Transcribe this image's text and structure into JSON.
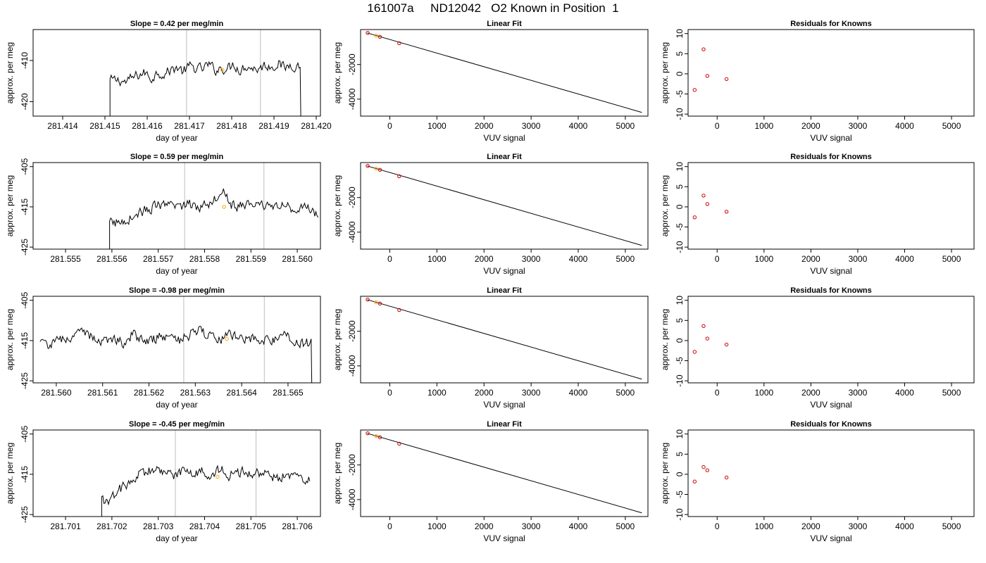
{
  "suptitle": "161007a     ND12042   O2 Known in Position  1",
  "colors": {
    "trace": "#000000",
    "grid_vline": "#c8c8c8",
    "known_point": "#ffa500",
    "residual": "#cc0000",
    "axis": "#000000"
  },
  "chart_data": [
    {
      "type": "line",
      "title": "Slope =  0.42  per meg/min",
      "xlabel": "day of year",
      "ylabel": "approx. per meg",
      "xlim": [
        281.4133,
        281.4201
      ],
      "ylim": [
        -423.5,
        -402.5
      ],
      "xticks": [
        281.414,
        281.415,
        281.416,
        281.417,
        281.418,
        281.419,
        281.42
      ],
      "xtick_labels": [
        "281.414",
        "281.415",
        "281.416",
        "281.417",
        "281.418",
        "281.419",
        "281.420"
      ],
      "yticks": [
        -410,
        -420
      ],
      "ytick_labels": [
        "-410",
        "-420"
      ],
      "vlines": [
        281.41693,
        281.41868
      ],
      "series_start": 281.41512,
      "series_end": 281.41962,
      "series": [
        {
          "x": [
            281.41535,
            281.4155,
            281.41565,
            281.4158,
            281.41595,
            281.4161,
            281.41625,
            281.4164,
            281.41655,
            281.4167,
            281.41685,
            281.417,
            281.41715,
            281.4173,
            281.41745,
            281.4176,
            281.41775,
            281.4179,
            281.41805,
            281.4182,
            281.41835,
            281.4185,
            281.41865,
            281.4188,
            281.41895,
            281.4191,
            281.41925,
            281.4194,
            281.41955
          ],
          "values": [
            -414.8,
            -415.3,
            -414.2,
            -413.5,
            -413.0,
            -414.4,
            -412.8,
            -413.3,
            -412.4,
            -411.6,
            -412.7,
            -411.5,
            -411.9,
            -412.1,
            -411.0,
            -412.3,
            -411.8,
            -412.0,
            -410.8,
            -412.4,
            -411.2,
            -411.9,
            -412.0,
            -411.1,
            -411.5,
            -410.6,
            -411.9,
            -410.9,
            -411.4
          ]
        }
      ],
      "markers": [
        {
          "x": 281.41778,
          "y": -412.3
        }
      ]
    },
    {
      "type": "line",
      "title": "Linear Fit",
      "xlabel": "VUV signal",
      "ylabel": "approx. per meg",
      "xlim": [
        -620,
        5480
      ],
      "ylim": [
        -4980,
        20
      ],
      "xticks": [
        0,
        1000,
        2000,
        3000,
        4000,
        5000
      ],
      "xtick_labels": [
        "0",
        "1000",
        "2000",
        "3000",
        "4000",
        "5000"
      ],
      "yticks": [
        -2000,
        -4000
      ],
      "ytick_labels": [
        "-2000",
        "-4000"
      ],
      "line": {
        "x": [
          -480,
          5350
        ],
        "y": [
          -175,
          -4765
        ]
      },
      "points": [
        {
          "x": -470,
          "y": -171
        },
        {
          "x": -290,
          "y": -330
        },
        {
          "x": -210,
          "y": -400
        },
        {
          "x": 200,
          "y": -770
        }
      ],
      "markers": [
        {
          "x": -290,
          "y": -330
        }
      ]
    },
    {
      "type": "scatter",
      "title": "Residuals for Knowns",
      "xlabel": "VUV signal",
      "ylabel": "approx. per meg",
      "xlim": [
        -620,
        5480
      ],
      "ylim": [
        -10.5,
        11
      ],
      "xticks": [
        0,
        1000,
        2000,
        3000,
        4000,
        5000
      ],
      "xtick_labels": [
        "0",
        "1000",
        "2000",
        "3000",
        "4000",
        "5000"
      ],
      "yticks": [
        10,
        5,
        0,
        -5,
        -10
      ],
      "ytick_labels": [
        "10",
        "5",
        "0",
        "-5",
        "-10"
      ],
      "points": [
        {
          "x": -480,
          "y": -4.0
        },
        {
          "x": -290,
          "y": 6.1
        },
        {
          "x": -210,
          "y": -0.5
        },
        {
          "x": 200,
          "y": -1.3
        }
      ]
    },
    {
      "type": "line",
      "title": "Slope =  0.59  per meg/min",
      "xlabel": "day of year",
      "ylabel": "approx. per meg",
      "xlim": [
        281.5543,
        281.5605
      ],
      "ylim": [
        -425.5,
        -404
      ],
      "xticks": [
        281.555,
        281.556,
        281.557,
        281.558,
        281.559,
        281.56
      ],
      "xtick_labels": [
        "281.555",
        "281.556",
        "281.557",
        "281.558",
        "281.559",
        "281.560"
      ],
      "yticks": [
        -405,
        -415,
        -425
      ],
      "ytick_labels": [
        "-405",
        "-415",
        "-425"
      ],
      "vlines": [
        281.55757,
        281.55928
      ],
      "series_start": 281.55595,
      "series_end": 281.56045,
      "series": [
        {
          "x": [
            281.55615,
            281.5563,
            281.55645,
            281.5566,
            281.55675,
            281.5569,
            281.55705,
            281.5572,
            281.55735,
            281.5575,
            281.55765,
            281.5578,
            281.55795,
            281.5581,
            281.55825,
            281.5584,
            281.55855,
            281.5587,
            281.55885,
            281.559,
            281.55915,
            281.5593,
            281.55945,
            281.5596,
            281.55975,
            281.5599,
            281.56005,
            281.5602,
            281.56035
          ],
          "values": [
            -419.0,
            -418.2,
            -417.4,
            -416.4,
            -415.8,
            -415.1,
            -414.6,
            -415.3,
            -414.4,
            -414.8,
            -414.1,
            -415.0,
            -414.6,
            -413.9,
            -412.6,
            -409.8,
            -414.2,
            -415.2,
            -414.5,
            -414.0,
            -415.0,
            -414.7,
            -414.2,
            -415.1,
            -414.8,
            -415.3,
            -414.9,
            -415.5,
            -416.5
          ]
        }
      ],
      "markers": [
        {
          "x": 281.55842,
          "y": -415.0
        }
      ]
    },
    {
      "type": "line",
      "title": "Linear Fit",
      "xlabel": "VUV signal",
      "ylabel": "approx. per meg",
      "xlim": [
        -620,
        5480
      ],
      "ylim": [
        -4980,
        20
      ],
      "xticks": [
        0,
        1000,
        2000,
        3000,
        4000,
        5000
      ],
      "xtick_labels": [
        "0",
        "1000",
        "2000",
        "3000",
        "4000",
        "5000"
      ],
      "yticks": [
        -2000,
        -4000
      ],
      "ytick_labels": [
        "-2000",
        "-4000"
      ],
      "line": {
        "x": [
          -480,
          5350
        ],
        "y": [
          -175,
          -4765
        ]
      },
      "points": [
        {
          "x": -470,
          "y": -171
        },
        {
          "x": -290,
          "y": -330
        },
        {
          "x": -210,
          "y": -400
        },
        {
          "x": 200,
          "y": -770
        }
      ],
      "markers": [
        {
          "x": -290,
          "y": -330
        }
      ]
    },
    {
      "type": "scatter",
      "title": "Residuals for Knowns",
      "xlabel": "VUV signal",
      "ylabel": "approx. per meg",
      "xlim": [
        -620,
        5480
      ],
      "ylim": [
        -10.5,
        11
      ],
      "xticks": [
        0,
        1000,
        2000,
        3000,
        4000,
        5000
      ],
      "xtick_labels": [
        "0",
        "1000",
        "2000",
        "3000",
        "4000",
        "5000"
      ],
      "yticks": [
        10,
        5,
        0,
        -5,
        -10
      ],
      "ytick_labels": [
        "10",
        "5",
        "0",
        "-5",
        "-10"
      ],
      "points": [
        {
          "x": -480,
          "y": -2.6
        },
        {
          "x": -290,
          "y": 2.8
        },
        {
          "x": -210,
          "y": 0.7
        },
        {
          "x": 200,
          "y": -1.2
        }
      ]
    },
    {
      "type": "line",
      "title": "Slope =  -0.98  per meg/min",
      "xlabel": "day of year",
      "ylabel": "approx. per meg",
      "xlim": [
        281.5595,
        281.5657
      ],
      "ylim": [
        -425.5,
        -404
      ],
      "xticks": [
        281.56,
        281.561,
        281.562,
        281.563,
        281.564,
        281.565
      ],
      "xtick_labels": [
        "281.560",
        "281.561",
        "281.562",
        "281.563",
        "281.564",
        "281.565"
      ],
      "yticks": [
        -405,
        -415,
        -425
      ],
      "ytick_labels": [
        "-405",
        "-415",
        "-425"
      ],
      "vlines": [
        281.56275,
        281.56449
      ],
      "series_start": 281.55965,
      "series_end": 281.5655,
      "series": [
        {
          "x": [
            281.55985,
            281.56005,
            281.56025,
            281.56045,
            281.56065,
            281.56085,
            281.56105,
            281.56125,
            281.56145,
            281.56165,
            281.56185,
            281.56205,
            281.56225,
            281.56245,
            281.56265,
            281.56285,
            281.56305,
            281.56325,
            281.56345,
            281.56365,
            281.56385,
            281.56405,
            281.56425,
            281.56445,
            281.56465,
            281.56485,
            281.56505,
            281.56525
          ],
          "values": [
            -416.0,
            -415.2,
            -414.1,
            -413.8,
            -413.0,
            -414.6,
            -415.0,
            -414.2,
            -415.5,
            -413.4,
            -414.8,
            -415.1,
            -413.9,
            -414.5,
            -414.9,
            -413.7,
            -412.5,
            -413.8,
            -415.1,
            -414.0,
            -413.6,
            -415.2,
            -414.3,
            -414.8,
            -415.0,
            -413.9,
            -414.4,
            -415.6
          ]
        }
      ],
      "markers": [
        {
          "x": 281.56368,
          "y": -414.6
        }
      ]
    },
    {
      "type": "line",
      "title": "Linear Fit",
      "xlabel": "VUV signal",
      "ylabel": "approx. per meg",
      "xlim": [
        -620,
        5480
      ],
      "ylim": [
        -4980,
        20
      ],
      "xticks": [
        0,
        1000,
        2000,
        3000,
        4000,
        5000
      ],
      "xtick_labels": [
        "0",
        "1000",
        "2000",
        "3000",
        "4000",
        "5000"
      ],
      "yticks": [
        -2000,
        -4000
      ],
      "ytick_labels": [
        "-2000",
        "-4000"
      ],
      "line": {
        "x": [
          -480,
          5350
        ],
        "y": [
          -175,
          -4765
        ]
      },
      "points": [
        {
          "x": -470,
          "y": -171
        },
        {
          "x": -290,
          "y": -330
        },
        {
          "x": -210,
          "y": -400
        },
        {
          "x": 200,
          "y": -770
        }
      ],
      "markers": [
        {
          "x": -290,
          "y": -330
        }
      ]
    },
    {
      "type": "scatter",
      "title": "Residuals for Knowns",
      "xlabel": "VUV signal",
      "ylabel": "approx. per meg",
      "xlim": [
        -620,
        5480
      ],
      "ylim": [
        -10.5,
        11
      ],
      "xticks": [
        0,
        1000,
        2000,
        3000,
        4000,
        5000
      ],
      "xtick_labels": [
        "0",
        "1000",
        "2000",
        "3000",
        "4000",
        "5000"
      ],
      "yticks": [
        10,
        5,
        0,
        -5,
        -10
      ],
      "ytick_labels": [
        "10",
        "5",
        "0",
        "-5",
        "-10"
      ],
      "points": [
        {
          "x": -480,
          "y": -2.8
        },
        {
          "x": -290,
          "y": 3.6
        },
        {
          "x": -210,
          "y": 0.5
        },
        {
          "x": 200,
          "y": -1.0
        }
      ]
    },
    {
      "type": "line",
      "title": "Slope =  -0.45  per meg/min",
      "xlabel": "day of year",
      "ylabel": "approx. per meg",
      "xlim": [
        281.7003,
        281.7065
      ],
      "ylim": [
        -425.5,
        -404
      ],
      "xticks": [
        281.701,
        281.702,
        281.703,
        281.704,
        281.705,
        281.706
      ],
      "xtick_labels": [
        "281.701",
        "281.702",
        "281.703",
        "281.704",
        "281.705",
        "281.706"
      ],
      "yticks": [
        -405,
        -415,
        -425
      ],
      "ytick_labels": [
        "-405",
        "-415",
        "-425"
      ],
      "vlines": [
        281.70337,
        281.70511
      ],
      "series_start": 281.70178,
      "series_end": 281.70627,
      "series": [
        {
          "x": [
            281.70198,
            281.70213,
            281.70228,
            281.70243,
            281.70258,
            281.70273,
            281.70288,
            281.70303,
            281.70318,
            281.70333,
            281.70348,
            281.70363,
            281.70378,
            281.70393,
            281.70408,
            281.70423,
            281.70438,
            281.70453,
            281.70468,
            281.70483,
            281.70498,
            281.70513,
            281.70528,
            281.70543,
            281.70558,
            281.70573,
            281.70588,
            281.70603,
            281.70618
          ],
          "values": [
            -421.5,
            -419.2,
            -418.0,
            -416.6,
            -415.2,
            -414.5,
            -413.9,
            -414.6,
            -414.1,
            -415.0,
            -414.4,
            -413.8,
            -414.9,
            -414.3,
            -415.1,
            -414.6,
            -414.0,
            -415.3,
            -414.7,
            -414.1,
            -415.0,
            -414.5,
            -414.9,
            -415.6,
            -416.0,
            -415.4,
            -416.1,
            -415.7,
            -416.3
          ]
        }
      ],
      "markers": [
        {
          "x": 281.70428,
          "y": -415.6
        }
      ]
    },
    {
      "type": "line",
      "title": "Linear Fit",
      "xlabel": "VUV signal",
      "ylabel": "approx. per meg",
      "xlim": [
        -620,
        5480
      ],
      "ylim": [
        -4980,
        20
      ],
      "xticks": [
        0,
        1000,
        2000,
        3000,
        4000,
        5000
      ],
      "xtick_labels": [
        "0",
        "1000",
        "2000",
        "3000",
        "4000",
        "5000"
      ],
      "yticks": [
        -2000,
        -4000
      ],
      "ytick_labels": [
        "-2000",
        "-4000"
      ],
      "line": {
        "x": [
          -480,
          5350
        ],
        "y": [
          -175,
          -4765
        ]
      },
      "points": [
        {
          "x": -470,
          "y": -171
        },
        {
          "x": -290,
          "y": -330
        },
        {
          "x": -210,
          "y": -400
        },
        {
          "x": 200,
          "y": -770
        }
      ],
      "markers": [
        {
          "x": -290,
          "y": -330
        }
      ]
    },
    {
      "type": "scatter",
      "title": "Residuals for Knowns",
      "xlabel": "VUV signal",
      "ylabel": "approx. per meg",
      "xlim": [
        -620,
        5480
      ],
      "ylim": [
        -10.5,
        11
      ],
      "xticks": [
        0,
        1000,
        2000,
        3000,
        4000,
        5000
      ],
      "xtick_labels": [
        "0",
        "1000",
        "2000",
        "3000",
        "4000",
        "5000"
      ],
      "yticks": [
        10,
        5,
        0,
        -5,
        -10
      ],
      "ytick_labels": [
        "10",
        "5",
        "0",
        "-5",
        "-10"
      ],
      "points": [
        {
          "x": -480,
          "y": -1.8
        },
        {
          "x": -290,
          "y": 1.8
        },
        {
          "x": -210,
          "y": 1.0
        },
        {
          "x": 200,
          "y": -0.8
        }
      ]
    }
  ]
}
